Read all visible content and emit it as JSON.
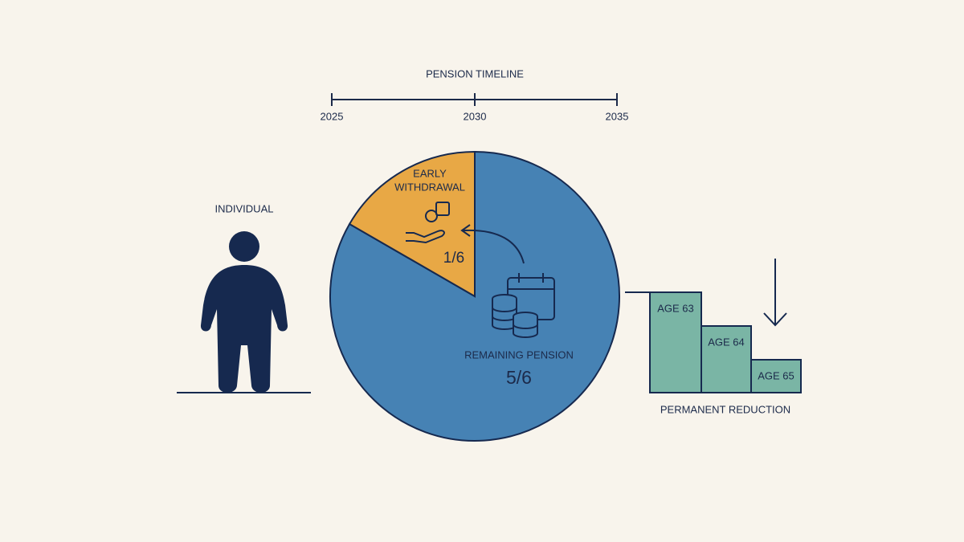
{
  "timeline": {
    "title": "PENSION TIMELINE",
    "ticks": [
      "2025",
      "2030",
      "2035"
    ]
  },
  "individual": {
    "label": "INDIVIDUAL"
  },
  "pie": {
    "early": {
      "label_lines": [
        "EARLY",
        "WITHDRAWAL"
      ],
      "fraction": "1/6"
    },
    "remaining": {
      "label": "REMAINING PENSION",
      "fraction": "5/6"
    }
  },
  "reduction": {
    "steps": [
      "AGE 63",
      "AGE 64",
      "AGE 65"
    ],
    "label": "PERMANENT REDUCTION"
  }
}
